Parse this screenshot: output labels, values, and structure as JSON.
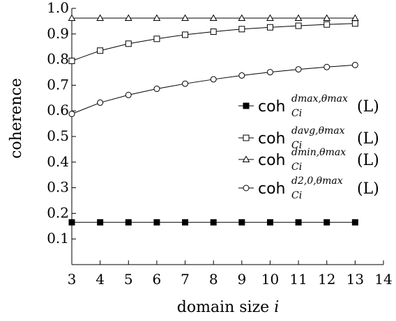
{
  "chart_data": {
    "type": "line",
    "xlabel": "domain size i",
    "ylabel": "coherence",
    "xlim": [
      3,
      14
    ],
    "ylim": [
      0,
      1.0
    ],
    "x_ticks": [
      "3",
      "4",
      "5",
      "6",
      "7",
      "8",
      "9",
      "10",
      "11",
      "12",
      "13",
      "14"
    ],
    "y_ticks": [
      "0.1",
      "0.2",
      "0.3",
      "0.4",
      "0.5",
      "0.6",
      "0.7",
      "0.8",
      "0.9",
      "1.0"
    ],
    "grid": false,
    "legend_position": "right",
    "x": [
      3,
      4,
      5,
      6,
      7,
      8,
      9,
      10,
      11,
      12,
      13
    ],
    "series": [
      {
        "name": "coh_{C_i}^{d_max,θ_max}(L)",
        "marker": "filled-square",
        "legend": {
          "main": "coh",
          "sup": "dmax,θmax",
          "sub": "Ci",
          "arg": "(L)"
        },
        "values": [
          0.165,
          0.165,
          0.165,
          0.165,
          0.165,
          0.165,
          0.165,
          0.165,
          0.165,
          0.165,
          0.165
        ]
      },
      {
        "name": "coh_{C_i}^{d_avg,θ_max}(L)",
        "marker": "open-square",
        "legend": {
          "main": "coh",
          "sup": "davg,θmax",
          "sub": "Ci",
          "arg": "(L)"
        },
        "values": [
          0.795,
          0.835,
          0.862,
          0.881,
          0.897,
          0.909,
          0.919,
          0.926,
          0.932,
          0.937,
          0.941
        ]
      },
      {
        "name": "coh_{C_i}^{d_min,θ_max}(L)",
        "marker": "open-triangle",
        "legend": {
          "main": "coh",
          "sup": "dmin,θmax",
          "sub": "Ci",
          "arg": "(L)"
        },
        "values": [
          0.962,
          0.962,
          0.962,
          0.962,
          0.962,
          0.962,
          0.962,
          0.962,
          0.962,
          0.962,
          0.962
        ]
      },
      {
        "name": "coh_{C_i}^{d_2,0,θ_max}(L)",
        "marker": "open-circle",
        "legend": {
          "main": "coh",
          "sup": "d2,0,θmax",
          "sub": "Ci",
          "arg": "(L)"
        },
        "values": [
          0.588,
          0.632,
          0.662,
          0.686,
          0.706,
          0.723,
          0.738,
          0.751,
          0.762,
          0.771,
          0.779
        ]
      }
    ],
    "colors": {
      "line": "#000000",
      "background": "#ffffff"
    }
  }
}
